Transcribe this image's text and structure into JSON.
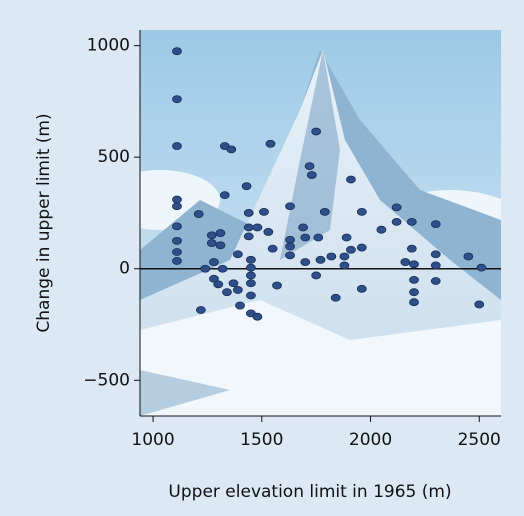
{
  "chart_data": {
    "type": "scatter",
    "x_label": "Upper elevation limit in 1965 (m)",
    "y_label": "Change in upper limit (m)",
    "color": "#2f4f8a",
    "xlim": [
      940,
      2600
    ],
    "ylim": [
      -660,
      1070
    ],
    "xticks": [
      1000,
      1500,
      2000,
      2500
    ],
    "yticks": [
      {
        "value": -500,
        "label": "−500"
      },
      0,
      500,
      1000
    ],
    "zero_line": true,
    "x": [
      1110,
      1110,
      1110,
      1110,
      1110,
      1110,
      1110,
      1110,
      1110,
      1210,
      1220,
      1240,
      1270,
      1270,
      1280,
      1280,
      1300,
      1310,
      1310,
      1320,
      1330,
      1330,
      1360,
      1340,
      1370,
      1390,
      1390,
      1400,
      1430,
      1440,
      1440,
      1440,
      1450,
      1450,
      1450,
      1450,
      1450,
      1450,
      1480,
      1480,
      1510,
      1530,
      1540,
      1550,
      1570,
      1630,
      1630,
      1630,
      1630,
      1690,
      1700,
      1700,
      1720,
      1730,
      1750,
      1760,
      1750,
      1770,
      1790,
      1820,
      1840,
      1880,
      1880,
      1890,
      1910,
      1910,
      1960,
      1960,
      1960,
      2050,
      2120,
      2120,
      2160,
      2190,
      2190,
      2200,
      2200,
      2200,
      2200,
      2300,
      2300,
      2300,
      2300,
      2450,
      2510,
      2500
    ],
    "values": [
      975,
      760,
      550,
      310,
      280,
      190,
      125,
      75,
      35,
      245,
      -185,
      0,
      150,
      115,
      30,
      -45,
      -70,
      105,
      160,
      0,
      330,
      550,
      535,
      -105,
      -65,
      65,
      -95,
      -165,
      370,
      250,
      185,
      145,
      40,
      5,
      -30,
      -65,
      -120,
      -200,
      -215,
      185,
      255,
      165,
      560,
      90,
      -75,
      280,
      130,
      100,
      60,
      185,
      140,
      30,
      460,
      420,
      615,
      140,
      -30,
      40,
      255,
      55,
      -130,
      55,
      15,
      140,
      85,
      400,
      95,
      255,
      -90,
      175,
      275,
      210,
      30,
      90,
      210,
      20,
      -50,
      -105,
      -150,
      200,
      65,
      15,
      -55,
      55,
      5,
      -160
    ]
  }
}
